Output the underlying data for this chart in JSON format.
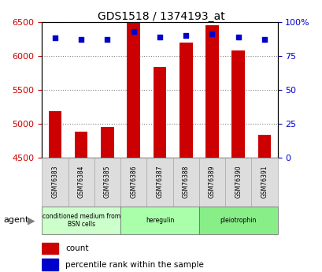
{
  "title": "GDS1518 / 1374193_at",
  "samples": [
    "GSM76383",
    "GSM76384",
    "GSM76385",
    "GSM76386",
    "GSM76387",
    "GSM76388",
    "GSM76389",
    "GSM76390",
    "GSM76391"
  ],
  "counts": [
    5180,
    4880,
    4950,
    6480,
    5840,
    6190,
    6450,
    6080,
    4840
  ],
  "percentiles": [
    88,
    87,
    87,
    93,
    89,
    90,
    91,
    89,
    87
  ],
  "ylim_left": [
    4500,
    6500
  ],
  "ylim_right": [
    0,
    100
  ],
  "yticks_left": [
    4500,
    5000,
    5500,
    6000,
    6500
  ],
  "yticks_right": [
    0,
    25,
    50,
    75,
    100
  ],
  "bar_color": "#cc0000",
  "dot_color": "#0000cc",
  "background_plot": "#ffffff",
  "groups": [
    {
      "label": "conditioned medium from\nBSN cells",
      "start": 0,
      "end": 3,
      "color": "#ccffcc"
    },
    {
      "label": "heregulin",
      "start": 3,
      "end": 6,
      "color": "#aaffaa"
    },
    {
      "label": "pleiotrophin",
      "start": 6,
      "end": 9,
      "color": "#88ee88"
    }
  ],
  "tick_label_area_color": "#dddddd",
  "agent_label": "agent",
  "legend_count_label": "count",
  "legend_pct_label": "percentile rank within the sample"
}
